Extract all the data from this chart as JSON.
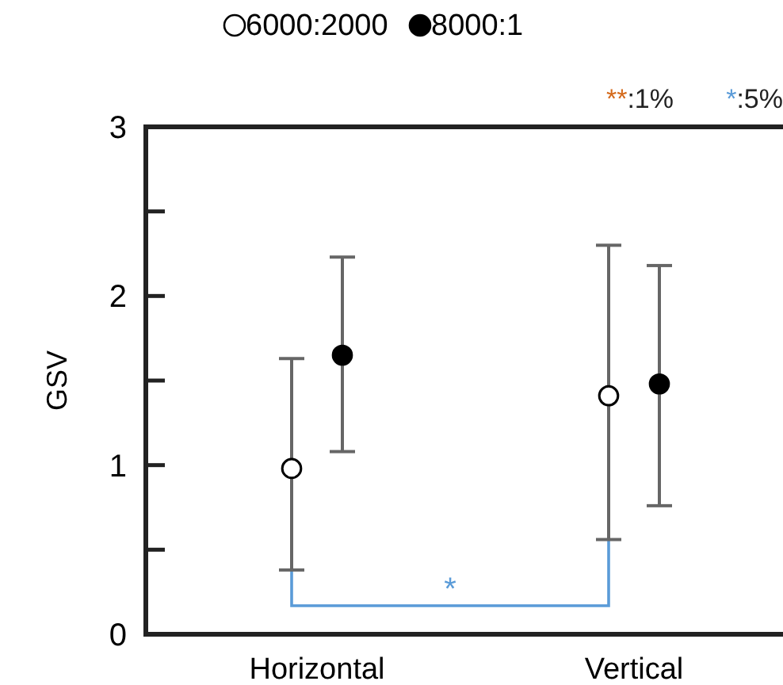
{
  "chart_data": {
    "type": "scatter",
    "ylabel": "GSV",
    "categories": [
      "Horizontal",
      "Vertical"
    ],
    "series": [
      {
        "name": "6000:2000",
        "color": "#ffffff",
        "values": [
          0.98,
          1.41
        ],
        "errors": [
          [
            0.38,
            1.63
          ],
          [
            0.56,
            2.3
          ]
        ]
      },
      {
        "name": "8000:1",
        "color": "#000000",
        "values": [
          1.65,
          1.48
        ],
        "errors": [
          [
            1.08,
            2.23
          ],
          [
            0.76,
            2.18
          ]
        ]
      }
    ],
    "ylim": [
      0,
      3
    ],
    "yticks": [
      0,
      {
        "value": 0.5,
        "label": null
      },
      1,
      {
        "value": 1.5,
        "label": null
      },
      2,
      {
        "value": 2.5,
        "label": null
      },
      3
    ],
    "grid": false,
    "legend": "top",
    "marker": "circle",
    "annotations": [
      "**:1%",
      "*:5%",
      "*"
    ]
  }
}
